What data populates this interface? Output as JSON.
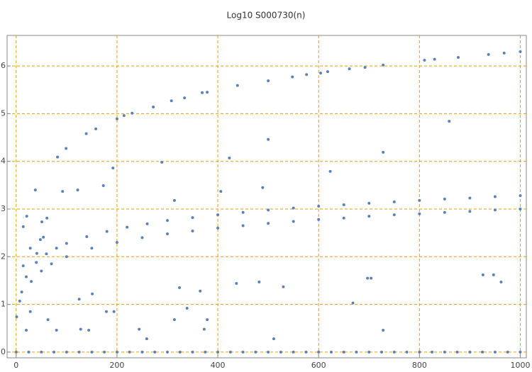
{
  "chart_data": {
    "type": "scatter",
    "title": "Log10 S000730(n)",
    "x": [
      0,
      25,
      50,
      75,
      100,
      125,
      150,
      175,
      200,
      225,
      250,
      275,
      300,
      325,
      350,
      375,
      400,
      425,
      450,
      475,
      500,
      525,
      550,
      575,
      600,
      625,
      650,
      675,
      700,
      725,
      750,
      775,
      800,
      825,
      850,
      875,
      900,
      925,
      950,
      975,
      1000,
      20,
      40,
      60,
      80,
      100,
      140,
      180,
      220,
      260,
      300,
      350,
      400,
      450,
      500,
      550,
      600,
      650,
      700,
      750,
      800,
      850,
      900,
      950,
      1000,
      30,
      50,
      70,
      100,
      150,
      200,
      250,
      300,
      350,
      400,
      450,
      500,
      550,
      600,
      650,
      700,
      750,
      800,
      850,
      900,
      950,
      1000,
      82,
      99,
      139,
      158,
      200,
      214,
      230,
      272,
      308,
      334,
      369,
      379,
      439,
      500,
      548,
      576,
      604,
      618,
      661,
      692,
      728,
      810,
      830,
      877,
      937,
      968,
      1000,
      38,
      92,
      122,
      173,
      192,
      289,
      423,
      500,
      623,
      728,
      859,
      406,
      489,
      314,
      1,
      437,
      482,
      530,
      697,
      704,
      668,
      926,
      947,
      962,
      324,
      365,
      339,
      373,
      244,
      259,
      511,
      728,
      151,
      144,
      125,
      80,
      194,
      28,
      20,
      179,
      314,
      379,
      63,
      128,
      14,
      21,
      51,
      61,
      48,
      28,
      41,
      54,
      14,
      7,
      11
    ],
    "values": [
      0,
      0,
      0,
      0,
      0,
      0,
      0,
      0,
      0,
      0,
      0,
      0,
      0,
      0,
      0,
      0,
      0,
      0,
      0,
      0,
      0,
      0,
      0,
      0,
      0,
      0,
      0,
      0,
      0,
      0,
      0,
      0,
      0,
      0,
      0,
      0,
      0,
      0,
      0,
      0,
      0,
      1.58,
      1.88,
      2.06,
      2.18,
      2.28,
      2.42,
      2.53,
      2.62,
      2.69,
      2.76,
      2.82,
      2.88,
      2.93,
      2.98,
      3.02,
      3.06,
      3.09,
      3.12,
      3.15,
      3.18,
      3.21,
      3.23,
      3.26,
      3.28,
      1.48,
      1.7,
      1.85,
      2.0,
      2.18,
      2.3,
      2.4,
      2.48,
      2.54,
      2.6,
      2.65,
      2.7,
      2.74,
      2.78,
      2.81,
      2.85,
      2.88,
      2.9,
      2.93,
      2.95,
      2.98,
      3.0,
      4.09,
      4.27,
      4.58,
      4.68,
      4.89,
      4.96,
      5.01,
      5.14,
      5.27,
      5.33,
      5.44,
      5.45,
      5.59,
      5.69,
      5.77,
      5.82,
      5.85,
      5.88,
      5.94,
      5.97,
      6.02,
      6.12,
      6.14,
      6.18,
      6.24,
      6.27,
      6.3,
      3.4,
      3.37,
      3.4,
      3.49,
      3.86,
      3.98,
      4.07,
      4.46,
      3.79,
      4.19,
      4.84,
      3.37,
      3.45,
      3.18,
      0.74,
      1.44,
      1.47,
      1.37,
      1.55,
      1.55,
      1.03,
      1.62,
      1.62,
      1.47,
      1.35,
      1.28,
      0.92,
      0.48,
      0.48,
      0.28,
      0.28,
      0.46,
      1.22,
      0.46,
      1.11,
      0.46,
      0.85,
      0.85,
      0.46,
      0.85,
      0.68,
      0.68,
      0.68,
      0.48,
      2.63,
      2.85,
      2.73,
      2.81,
      2.36,
      2.18,
      2.07,
      2.41,
      1.81,
      1.07,
      1.26
    ],
    "color": "#5e81b5",
    "xlim": [
      -18,
      1012
    ],
    "ylim": [
      -0.12,
      6.64
    ],
    "xticks": [
      0,
      200,
      400,
      600,
      800,
      1000
    ],
    "yticks": [
      0,
      1,
      2,
      3,
      4,
      5,
      6
    ],
    "grid": true,
    "grid_color": "#e69d00"
  }
}
